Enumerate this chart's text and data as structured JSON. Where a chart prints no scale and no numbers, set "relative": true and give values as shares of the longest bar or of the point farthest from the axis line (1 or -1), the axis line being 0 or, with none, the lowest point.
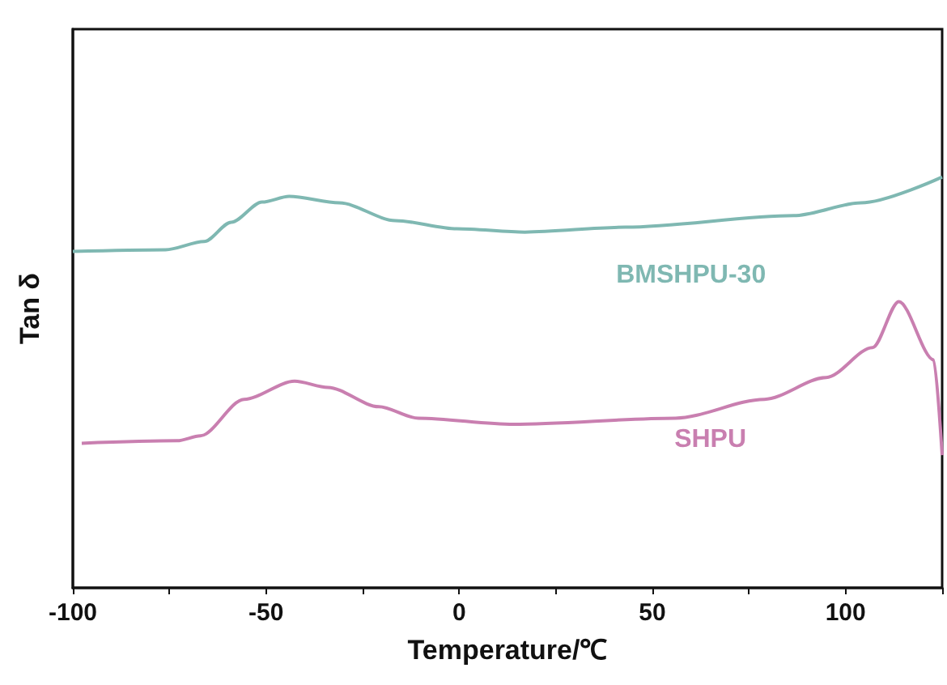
{
  "chart_data": {
    "type": "line",
    "relative": true,
    "xlabel": "Temperature/℃",
    "ylabel": "Tan δ",
    "xlim": [
      -100,
      125
    ],
    "xticks": [
      -100,
      {
        "value": -75,
        "label": null
      },
      -50,
      {
        "value": -25,
        "label": null
      },
      0,
      {
        "value": 25,
        "label": null
      },
      50,
      {
        "value": 75,
        "label": null
      },
      100,
      {
        "value": 125,
        "label": null
      }
    ],
    "x": [
      -100,
      -76,
      -66,
      -59,
      -51,
      -44,
      -31,
      -16.5,
      -0.6,
      17,
      43,
      86.6,
      104,
      125
    ],
    "series": [
      {
        "name": "BMSHPU-30",
        "color": "#7fb8b2",
        "values": [
          0.819,
          0.823,
          0.843,
          0.89,
          0.939,
          0.953,
          0.937,
          0.894,
          0.874,
          0.866,
          0.878,
          0.906,
          0.937,
          1
        ]
      },
      {
        "name": "SHPU",
        "color": "#c97fb0",
        "x": [
          -97.7,
          -73,
          -67,
          -55.7,
          -42.6,
          -34,
          -20.8,
          -10.6,
          14,
          56,
          79,
          95,
          107,
          113.8,
          122.8,
          125
        ],
        "values": [
          0.352,
          0.358,
          0.37,
          0.459,
          0.503,
          0.488,
          0.441,
          0.413,
          0.398,
          0.413,
          0.459,
          0.512,
          0.585,
          0.697,
          0.555,
          0.323
        ]
      }
    ],
    "grid": false,
    "legend": false,
    "marker": "none",
    "line_style": "solid"
  }
}
